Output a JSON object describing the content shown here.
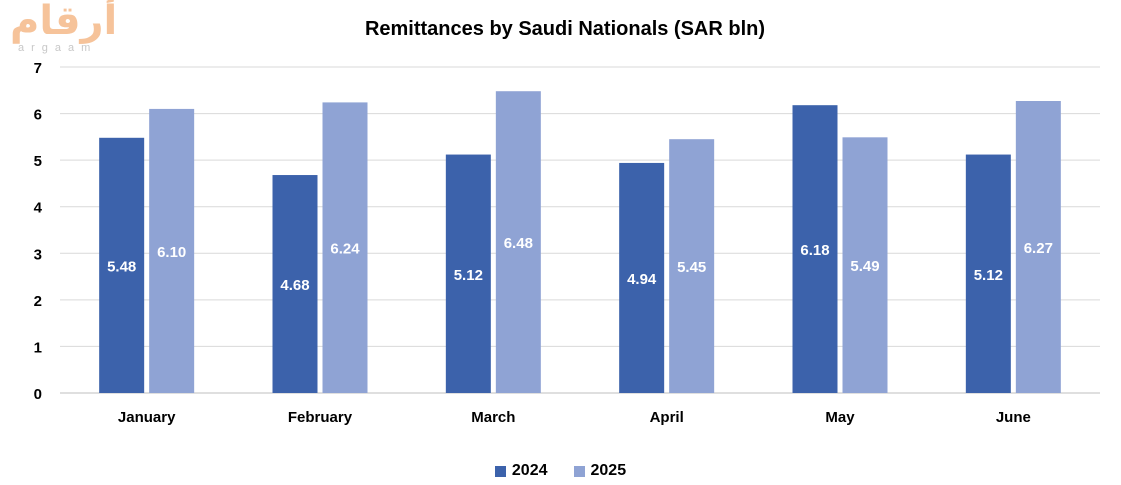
{
  "logo": {
    "arabic": "أرقام",
    "latin": "argaam"
  },
  "chart_data": {
    "type": "bar",
    "title": "Remittances by Saudi Nationals (SAR bln)",
    "categories": [
      "January",
      "February",
      "March",
      "April",
      "May",
      "June"
    ],
    "series": [
      {
        "name": "2024",
        "color": "#3c62ab",
        "values": [
          5.48,
          4.68,
          5.12,
          4.94,
          6.18,
          5.12
        ]
      },
      {
        "name": "2025",
        "color": "#8fa3d4",
        "values": [
          6.1,
          6.24,
          6.48,
          5.45,
          5.49,
          6.27
        ]
      }
    ],
    "ylim": [
      0,
      7
    ],
    "yticks": [
      0,
      1,
      2,
      3,
      4,
      5,
      6,
      7
    ],
    "grid": true,
    "legend": "bottom",
    "xlabel": "",
    "ylabel": ""
  }
}
